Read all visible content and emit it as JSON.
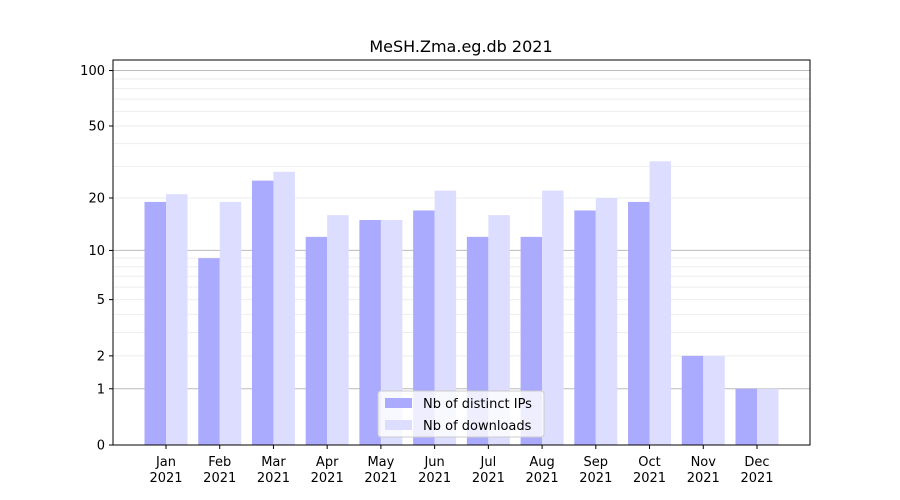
{
  "chart_data": {
    "type": "bar",
    "title": "MeSH.Zma.eg.db 2021",
    "xlabel": "",
    "ylabel": "",
    "scale": "log(y+1)",
    "ylim": [
      0,
      114
    ],
    "yticks": [
      0,
      1,
      2,
      5,
      10,
      20,
      50,
      100
    ],
    "grid": true,
    "legend_position": "bottom-center",
    "categories": [
      "Jan\n2021",
      "Feb\n2021",
      "Mar\n2021",
      "Apr\n2021",
      "May\n2021",
      "Jun\n2021",
      "Jul\n2021",
      "Aug\n2021",
      "Sep\n2021",
      "Oct\n2021",
      "Nov\n2021",
      "Dec\n2021"
    ],
    "series": [
      {
        "name": "Nb of distinct IPs",
        "color": "#aaaaff",
        "values": [
          19,
          9,
          25,
          12,
          15,
          17,
          12,
          12,
          17,
          19,
          2,
          1
        ]
      },
      {
        "name": "Nb of downloads",
        "color": "#ddddff",
        "values": [
          21,
          19,
          28,
          16,
          15,
          22,
          16,
          22,
          20,
          32,
          2,
          1
        ]
      }
    ]
  }
}
